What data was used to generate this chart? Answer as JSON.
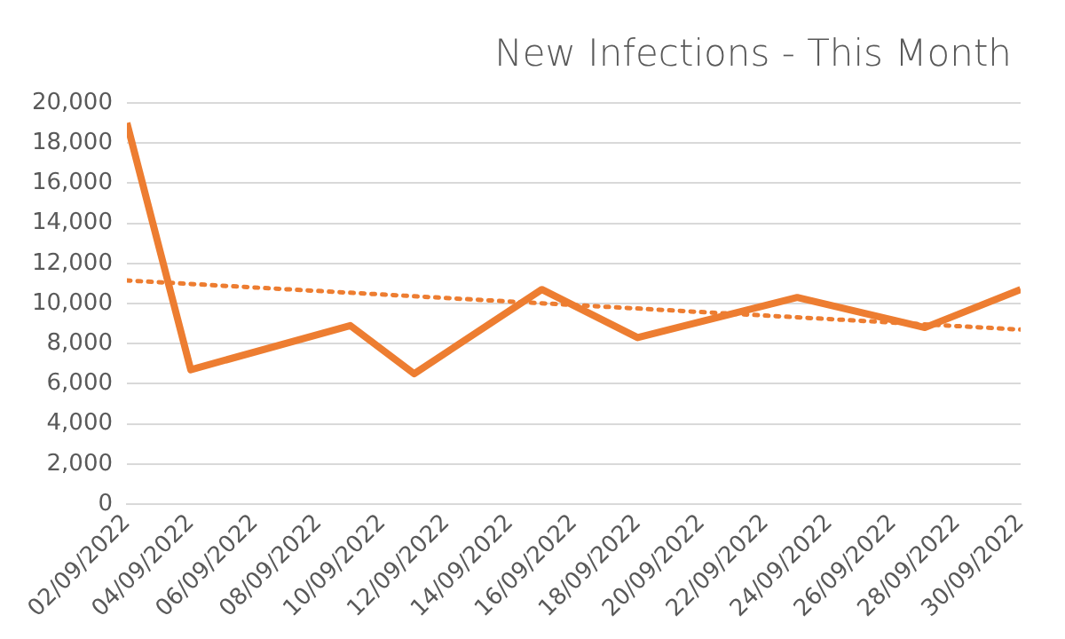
{
  "chart_data": {
    "type": "line",
    "title": "New Infections - This Month",
    "x": [
      "2022-09-02",
      "2022-09-04",
      "2022-09-09",
      "2022-09-11",
      "2022-09-15",
      "2022-09-18",
      "2022-09-23",
      "2022-09-27",
      "2022-09-30"
    ],
    "series": [
      {
        "color": "#ed7d31",
        "values": [
          19000,
          6700,
          8900,
          6500,
          10700,
          8300,
          10300,
          8800,
          10700
        ]
      },
      {
        "type": "line",
        "color": "#ed7d31",
        "line_style": "dotted",
        "x": [
          "2022-09-02",
          "2022-09-30"
        ],
        "values": [
          11150,
          8700
        ]
      }
    ],
    "xlim": [
      "2022-09-02",
      "2022-09-30"
    ],
    "xticks": [
      {
        "value": "2022-09-02",
        "label": "02/09/2022"
      },
      {
        "value": "2022-09-04",
        "label": "04/09/2022"
      },
      {
        "value": "2022-09-06",
        "label": "06/09/2022"
      },
      {
        "value": "2022-09-08",
        "label": "08/09/2022"
      },
      {
        "value": "2022-09-10",
        "label": "10/09/2022"
      },
      {
        "value": "2022-09-12",
        "label": "12/09/2022"
      },
      {
        "value": "2022-09-14",
        "label": "14/09/2022"
      },
      {
        "value": "2022-09-16",
        "label": "16/09/2022"
      },
      {
        "value": "2022-09-18",
        "label": "18/09/2022"
      },
      {
        "value": "2022-09-20",
        "label": "20/09/2022"
      },
      {
        "value": "2022-09-22",
        "label": "22/09/2022"
      },
      {
        "value": "2022-09-24",
        "label": "24/09/2022"
      },
      {
        "value": "2022-09-26",
        "label": "26/09/2022"
      },
      {
        "value": "2022-09-28",
        "label": "28/09/2022"
      },
      {
        "value": "2022-09-30",
        "label": "30/09/2022"
      }
    ],
    "ylim": [
      0,
      20000
    ],
    "yticks": [
      {
        "value": 0,
        "label": "0"
      },
      {
        "value": 2000,
        "label": "2,000"
      },
      {
        "value": 4000,
        "label": "4,000"
      },
      {
        "value": 6000,
        "label": "6,000"
      },
      {
        "value": 8000,
        "label": "8,000"
      },
      {
        "value": 10000,
        "label": "10,000"
      },
      {
        "value": 12000,
        "label": "12,000"
      },
      {
        "value": 14000,
        "label": "14,000"
      },
      {
        "value": 16000,
        "label": "16,000"
      },
      {
        "value": 18000,
        "label": "18,000"
      },
      {
        "value": 20000,
        "label": "20,000"
      }
    ],
    "grid": "y",
    "legend": false,
    "marker": "none"
  }
}
